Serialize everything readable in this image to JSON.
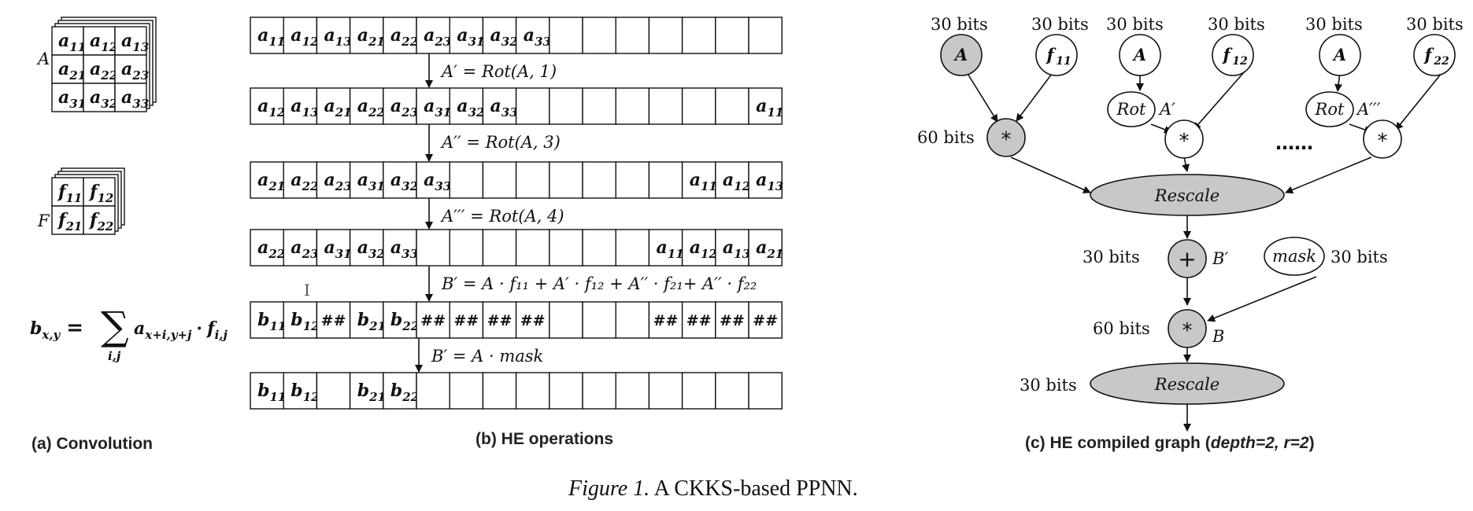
{
  "panel_a": {
    "matrix_A_label": "A",
    "matrix_A": [
      [
        "a11",
        "a12",
        "a13"
      ],
      [
        "a21",
        "a22",
        "a23"
      ],
      [
        "a31",
        "a32",
        "a33"
      ]
    ],
    "matrix_F_label": "F",
    "matrix_F": [
      [
        "f11",
        "f12"
      ],
      [
        "f21",
        "f22"
      ]
    ],
    "formula_lhs": "b",
    "formula_lhs_sub": "x,y",
    "formula_sum": "∑",
    "formula_sum_sub": "i,j",
    "formula_term1": "a",
    "formula_term1_sub": "x+i,y+j",
    "formula_term2": "f",
    "formula_term2_sub": "i,j",
    "caption": "(a) Convolution"
  },
  "panel_b": {
    "rows": [
      [
        "a11",
        "a12",
        "a13",
        "a21",
        "a22",
        "a23",
        "a31",
        "a32",
        "a33",
        "",
        "",
        "",
        "",
        "",
        "",
        ""
      ],
      [
        "a12",
        "a13",
        "a21",
        "a22",
        "a23",
        "a31",
        "a32",
        "a33",
        "",
        "",
        "",
        "",
        "",
        "",
        "",
        "a11"
      ],
      [
        "a21",
        "a22",
        "a23",
        "a31",
        "a32",
        "a33",
        "",
        "",
        "",
        "",
        "",
        "",
        "",
        "a11",
        "a12",
        "a13"
      ],
      [
        "a22",
        "a23",
        "a31",
        "a32",
        "a33",
        "",
        "",
        "",
        "",
        "",
        "",
        "",
        "a11",
        "a12",
        "a13",
        "a21"
      ],
      [
        "b11",
        "b12",
        "##",
        "b21",
        "b22",
        "##",
        "##",
        "##",
        "##",
        "",
        "",
        "",
        "##",
        "##",
        "##",
        "##"
      ],
      [
        "b11",
        "b12",
        "",
        "b21",
        "b22",
        "",
        "",
        "",
        "",
        "",
        "",
        "",
        "",
        "",
        "",
        ""
      ]
    ],
    "ops": [
      "A′ = Rot(A, 1)",
      "A′′ = Rot(A, 3)",
      "A′′′ = Rot(A, 4)",
      "B′ = A · f₁₁ + A′ · f₁₂ + A′′ · f₂₁+ A′′ · f₂₂",
      "B′ = A · mask"
    ],
    "caption": "(b) HE operations"
  },
  "panel_c": {
    "bits_30": "30 bits",
    "bits_60": "60 bits",
    "node_A": "A",
    "node_f11": "f11",
    "node_f12": "f12",
    "node_f22": "f22",
    "node_rot": "Rot",
    "label_A1": "A′",
    "label_A3": "A′′′",
    "op_mul": "*",
    "op_add": "+",
    "ellipsis": "……",
    "rescale": "Rescale",
    "label_B1": "B′",
    "label_B": "B",
    "mask": "mask",
    "caption_prefix": "(c) HE compiled graph (",
    "caption_italic": "depth=2, r=2",
    "caption_suffix": ")"
  },
  "figure_caption_italic": "Figure 1.",
  "figure_caption_text": " A CKKS-based PPNN."
}
